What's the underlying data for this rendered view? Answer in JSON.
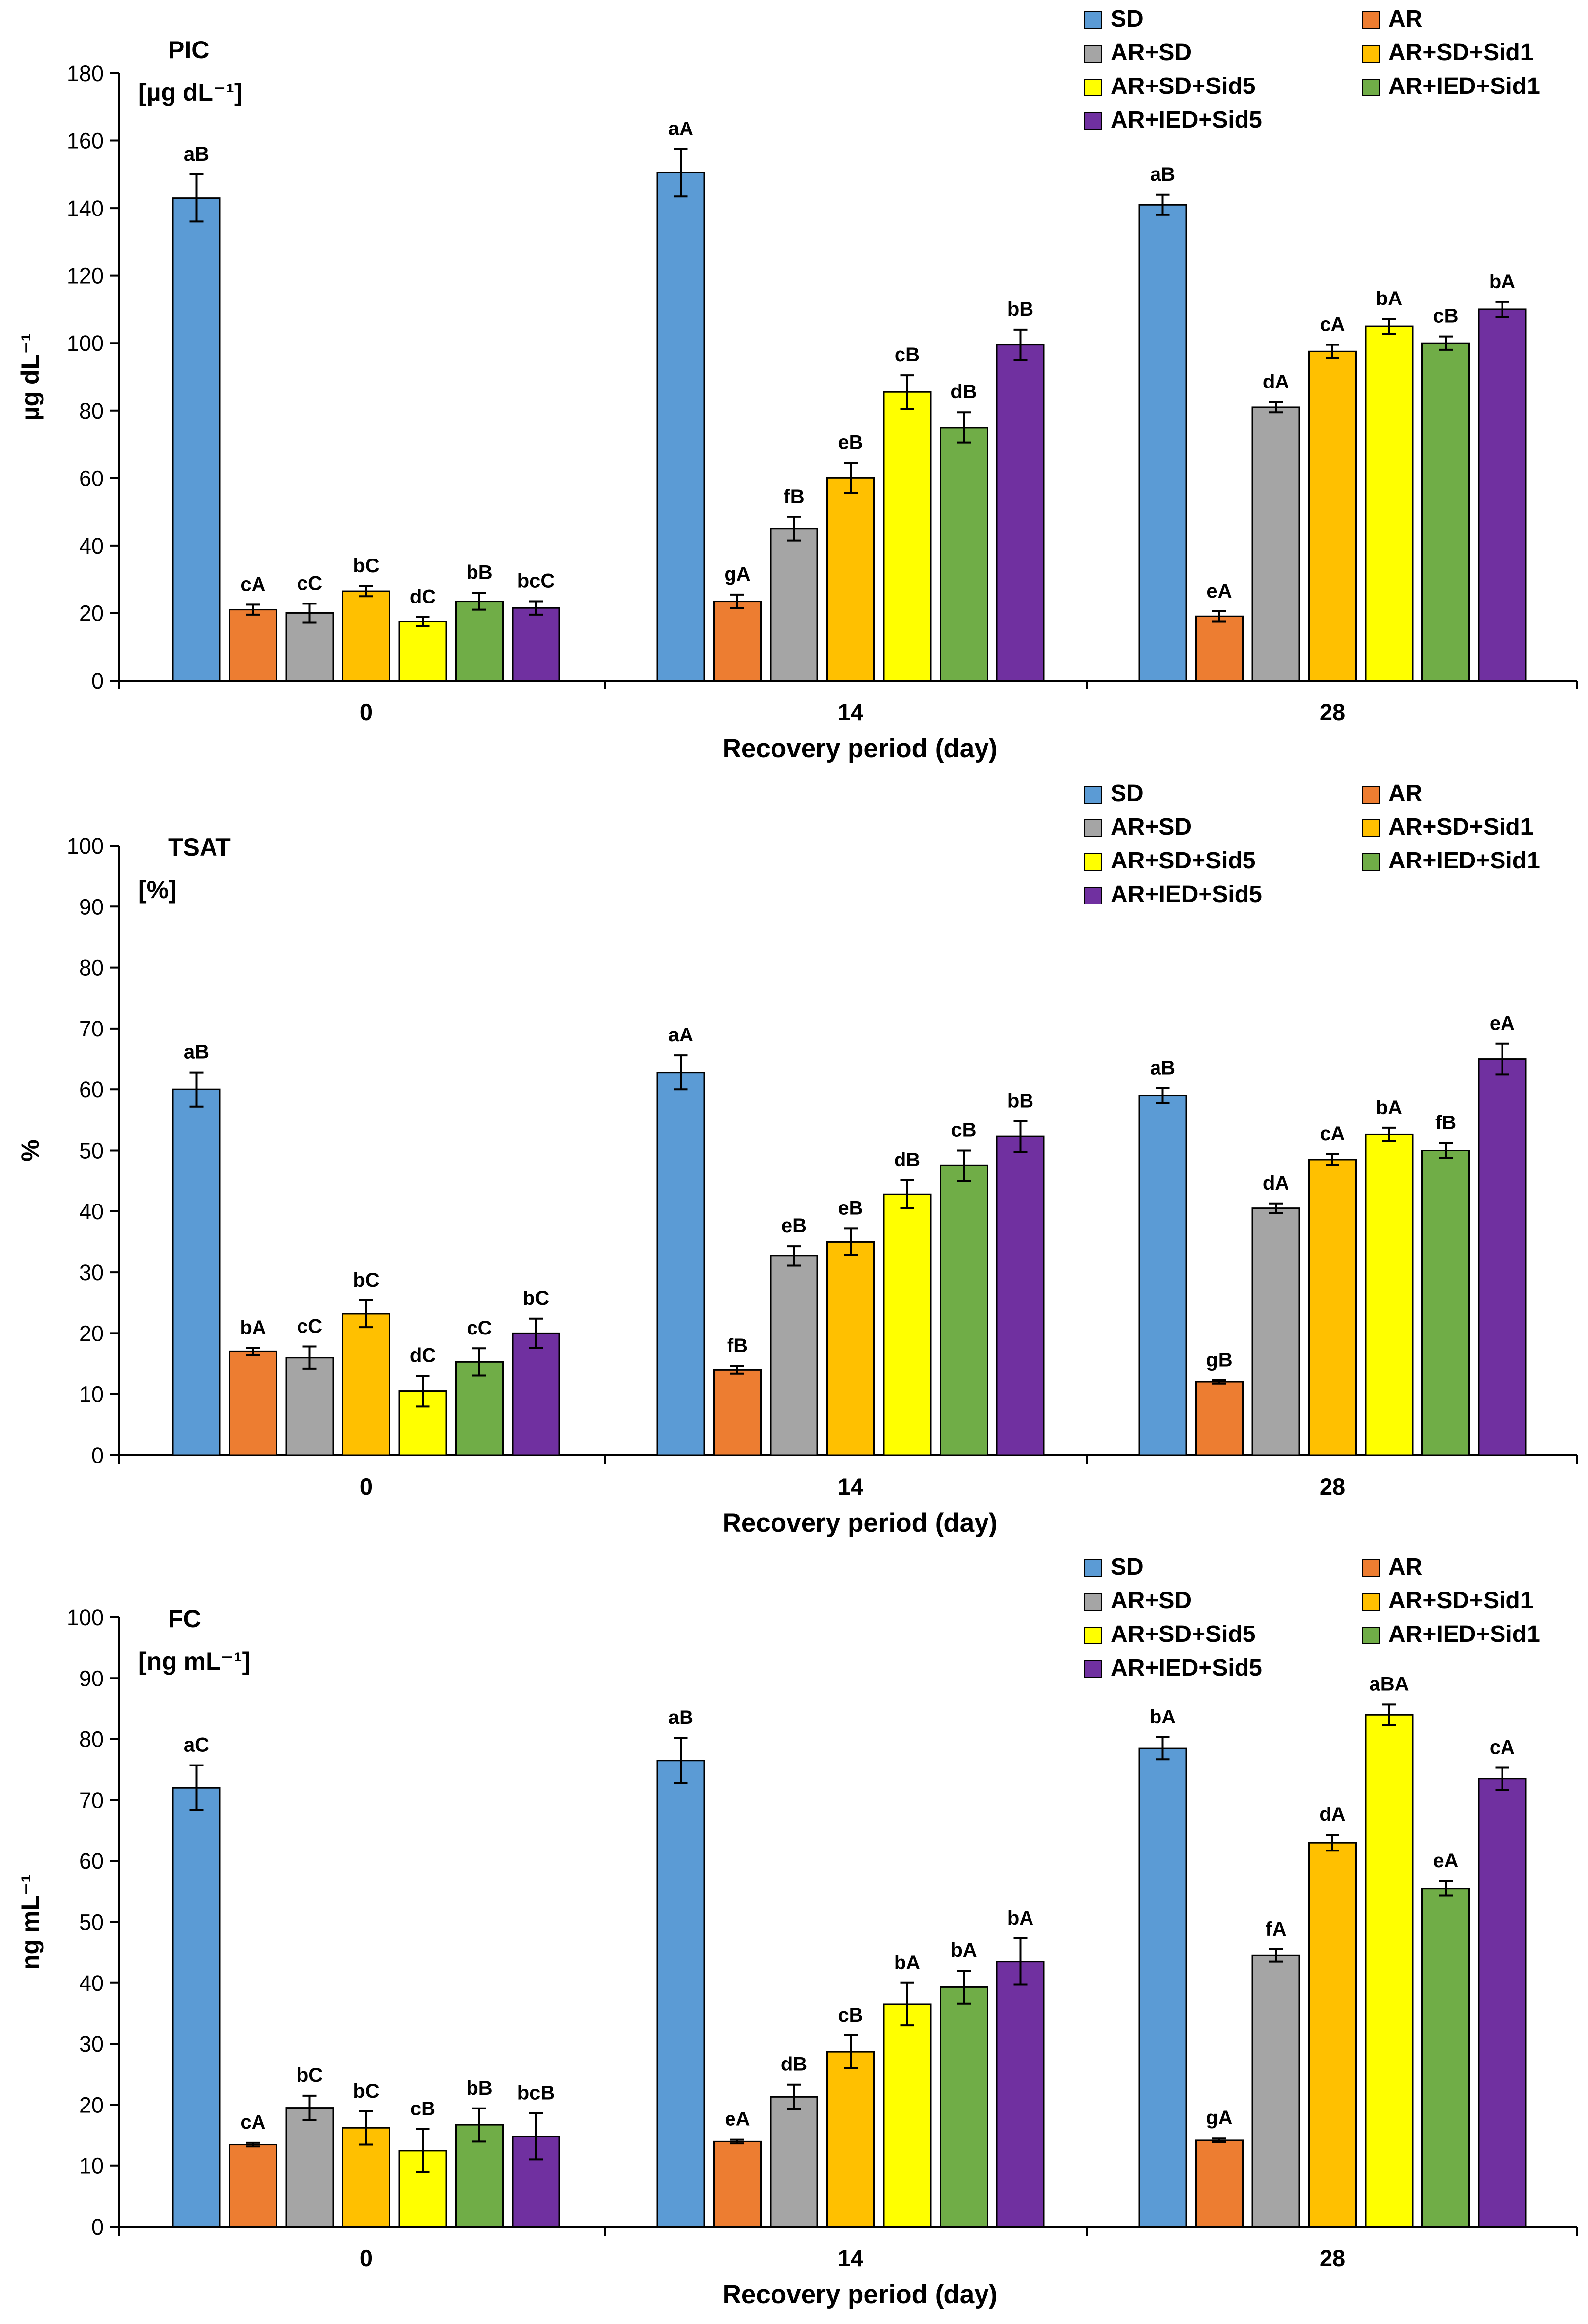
{
  "chart_data": [
    {
      "type": "bar",
      "title": "PIC",
      "unit": "[µg dL⁻¹]",
      "xlabel": "Recovery period (day)",
      "ylabel": "µg dL⁻¹",
      "ylim": [
        0,
        180
      ],
      "ytick_step": 20,
      "yticks": [
        "0",
        "20",
        "40",
        "60",
        "80",
        "100",
        "120",
        "140",
        "160",
        "180"
      ],
      "categories": [
        "0",
        "14",
        "28"
      ],
      "legend_position": "top-right",
      "series": [
        {
          "name": "SD",
          "color": "#5B9BD5",
          "values": [
            143,
            150.5,
            141
          ],
          "errors": [
            7,
            7,
            3
          ],
          "labels": [
            "aB",
            "aA",
            "aB"
          ]
        },
        {
          "name": "AR",
          "color": "#ED7D31",
          "values": [
            21,
            23.5,
            19
          ],
          "errors": [
            1.5,
            2,
            1.5
          ],
          "labels": [
            "cA",
            "gA",
            "eA"
          ]
        },
        {
          "name": "AR+SD",
          "color": "#A5A5A5",
          "values": [
            20,
            45,
            81
          ],
          "errors": [
            2.8,
            3.5,
            1.5
          ],
          "labels": [
            "cC",
            "fB",
            "dA"
          ]
        },
        {
          "name": "AR+SD+Sid1",
          "color": "#FFC000",
          "values": [
            26.5,
            60,
            97.5
          ],
          "errors": [
            1.5,
            4.5,
            2
          ],
          "labels": [
            "bC",
            "eB",
            "cA"
          ]
        },
        {
          "name": "AR+SD+Sid5",
          "color": "#FFFF00",
          "values": [
            17.5,
            85.5,
            105
          ],
          "errors": [
            1.3,
            5,
            2.2
          ],
          "labels": [
            "dC",
            "cB",
            "bA"
          ]
        },
        {
          "name": "AR+IED+Sid1",
          "color": "#70AD47",
          "values": [
            23.5,
            75,
            100
          ],
          "errors": [
            2.5,
            4.5,
            2
          ],
          "labels": [
            "bB",
            "dB",
            "cB"
          ]
        },
        {
          "name": "AR+IED+Sid5",
          "color": "#7030A0",
          "values": [
            21.5,
            99.5,
            110
          ],
          "errors": [
            2,
            4.5,
            2.2
          ],
          "labels": [
            "bcC",
            "bB",
            "bA"
          ]
        }
      ]
    },
    {
      "type": "bar",
      "title": "TSAT",
      "unit": "[%]",
      "xlabel": "Recovery period (day)",
      "ylabel": "%",
      "ylim": [
        0,
        100
      ],
      "ytick_step": 10,
      "yticks": [
        "0",
        "10",
        "20",
        "30",
        "40",
        "50",
        "60",
        "70",
        "80",
        "90",
        "100"
      ],
      "categories": [
        "0",
        "14",
        "28"
      ],
      "legend_position": "top-right",
      "series": [
        {
          "name": "SD",
          "color": "#5B9BD5",
          "values": [
            60,
            62.8,
            59
          ],
          "errors": [
            2.8,
            2.8,
            1.2
          ],
          "labels": [
            "aB",
            "aA",
            "aB"
          ]
        },
        {
          "name": "AR",
          "color": "#ED7D31",
          "values": [
            17,
            14,
            12
          ],
          "errors": [
            0.6,
            0.6,
            0.3
          ],
          "labels": [
            "bA",
            "fB",
            "gB"
          ]
        },
        {
          "name": "AR+SD",
          "color": "#A5A5A5",
          "values": [
            16,
            32.7,
            40.5
          ],
          "errors": [
            1.8,
            1.6,
            0.8
          ],
          "labels": [
            "cC",
            "eB",
            "dA"
          ]
        },
        {
          "name": "AR+SD+Sid1",
          "color": "#FFC000",
          "values": [
            23.2,
            35,
            48.5
          ],
          "errors": [
            2.2,
            2.2,
            0.9
          ],
          "labels": [
            "bC",
            "eB",
            "cA"
          ]
        },
        {
          "name": "AR+SD+Sid5",
          "color": "#FFFF00",
          "values": [
            10.5,
            42.8,
            52.6
          ],
          "errors": [
            2.5,
            2.3,
            1.1
          ],
          "labels": [
            "dC",
            "dB",
            "bA"
          ]
        },
        {
          "name": "AR+IED+Sid1",
          "color": "#70AD47",
          "values": [
            15.3,
            47.5,
            50
          ],
          "errors": [
            2.2,
            2.5,
            1.2
          ],
          "labels": [
            "cC",
            "cB",
            "fB"
          ]
        },
        {
          "name": "AR+IED+Sid5",
          "color": "#7030A0",
          "values": [
            20,
            52.3,
            65
          ],
          "errors": [
            2.4,
            2.5,
            2.5
          ],
          "labels": [
            "bC",
            "bB",
            "eA"
          ]
        }
      ]
    },
    {
      "type": "bar",
      "title": "FC",
      "unit": "[ng mL⁻¹]",
      "xlabel": "Recovery period (day)",
      "ylabel": "ng mL⁻¹",
      "ylim": [
        0,
        100
      ],
      "ytick_step": 10,
      "yticks": [
        "0",
        "10",
        "20",
        "30",
        "40",
        "50",
        "60",
        "70",
        "80",
        "90",
        "100"
      ],
      "categories": [
        "0",
        "14",
        "28"
      ],
      "legend_position": "top-right",
      "series": [
        {
          "name": "SD",
          "color": "#5B9BD5",
          "values": [
            72,
            76.5,
            78.5
          ],
          "errors": [
            3.7,
            3.7,
            1.8
          ],
          "labels": [
            "aC",
            "aB",
            "bA"
          ]
        },
        {
          "name": "AR",
          "color": "#ED7D31",
          "values": [
            13.5,
            14,
            14.2
          ],
          "errors": [
            0.3,
            0.3,
            0.3
          ],
          "labels": [
            "cA",
            "eA",
            "gA"
          ]
        },
        {
          "name": "AR+SD",
          "color": "#A5A5A5",
          "values": [
            19.5,
            21.3,
            44.5
          ],
          "errors": [
            2,
            2,
            1
          ],
          "labels": [
            "bC",
            "dB",
            "fA"
          ]
        },
        {
          "name": "AR+SD+Sid1",
          "color": "#FFC000",
          "values": [
            16.2,
            28.7,
            63
          ],
          "errors": [
            2.7,
            2.7,
            1.3
          ],
          "labels": [
            "bC",
            "cB",
            "dA"
          ]
        },
        {
          "name": "AR+SD+Sid5",
          "color": "#FFFF00",
          "values": [
            12.5,
            36.5,
            84
          ],
          "errors": [
            3.5,
            3.5,
            1.7
          ],
          "labels": [
            "cB",
            "bA",
            "aBA"
          ]
        },
        {
          "name": "AR+IED+Sid1",
          "color": "#70AD47",
          "values": [
            16.7,
            39.3,
            55.5
          ],
          "errors": [
            2.7,
            2.7,
            1.2
          ],
          "labels": [
            "bB",
            "bA",
            "eA"
          ]
        },
        {
          "name": "AR+IED+Sid5",
          "color": "#7030A0",
          "values": [
            14.8,
            43.5,
            73.5
          ],
          "errors": [
            3.8,
            3.8,
            1.8
          ],
          "labels": [
            "bcB",
            "bA",
            "cA"
          ]
        }
      ]
    }
  ]
}
